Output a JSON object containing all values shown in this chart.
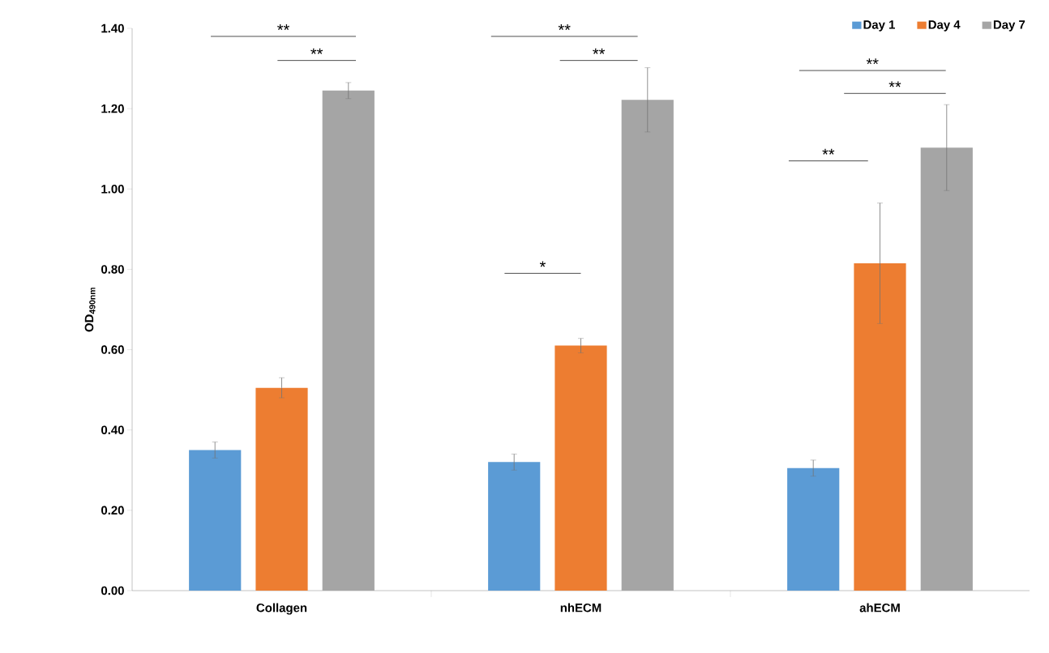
{
  "chart_data": {
    "type": "bar",
    "categories": [
      "Collagen",
      "nhECM",
      "ahECM"
    ],
    "ylabel": "OD$_{490nm}$",
    "ylim": [
      0,
      1.4
    ],
    "yticks": [
      {
        "value": 0,
        "label": "0.00"
      },
      {
        "value": 0.2,
        "label": "0.20"
      },
      {
        "value": 0.4,
        "label": "0.40"
      },
      {
        "value": 0.6,
        "label": "0.60"
      },
      {
        "value": 0.8,
        "label": "0.80"
      },
      {
        "value": 1.0,
        "label": "1.00"
      },
      {
        "value": 1.2,
        "label": "1.20"
      },
      {
        "value": 1.4,
        "label": "1.40"
      }
    ],
    "legend": "top right",
    "grid": false,
    "series": [
      {
        "name": "Day 1",
        "color": "#5b9bd5",
        "values": [
          0.35,
          0.32,
          0.305
        ],
        "errors": [
          0.02,
          0.02,
          0.02
        ]
      },
      {
        "name": "Day 4",
        "color": "#ed7d31",
        "values": [
          0.505,
          0.61,
          0.815
        ],
        "errors": [
          0.025,
          0.018,
          0.15
        ]
      },
      {
        "name": "Day 7",
        "color": "#a5a5a5",
        "values": [
          1.245,
          1.222,
          1.103
        ],
        "errors": [
          0.02,
          0.08,
          0.107
        ]
      }
    ],
    "annotations": [
      "**",
      "**",
      "**",
      "**",
      "*",
      "**",
      "**",
      "**"
    ]
  }
}
